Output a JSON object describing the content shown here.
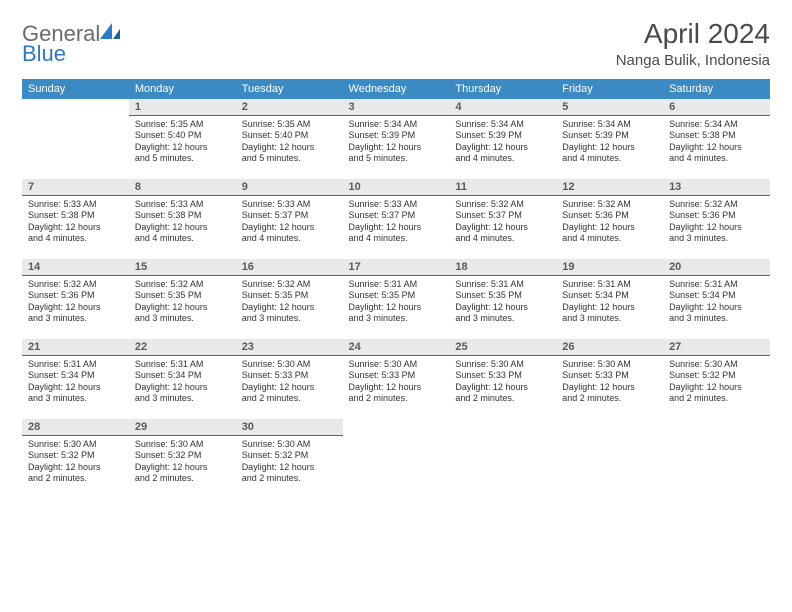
{
  "brand": {
    "name_gray": "General",
    "name_blue": "Blue"
  },
  "header": {
    "title": "April 2024",
    "location": "Nanga Bulik, Indonesia"
  },
  "colors": {
    "header_bg": "#3b8ac4",
    "header_text": "#ffffff",
    "daynum_bg": "#e7e9ea",
    "daynum_border": "#2c6aa0",
    "body_text": "#333333",
    "title_text": "#4a4a4a",
    "logo_gray": "#6b6b6b",
    "logo_blue": "#2f7ac0"
  },
  "weekdays": [
    "Sunday",
    "Monday",
    "Tuesday",
    "Wednesday",
    "Thursday",
    "Friday",
    "Saturday"
  ],
  "weeks": [
    [
      null,
      {
        "n": "1",
        "sr": "Sunrise: 5:35 AM",
        "ss": "Sunset: 5:40 PM",
        "d1": "Daylight: 12 hours",
        "d2": "and 5 minutes."
      },
      {
        "n": "2",
        "sr": "Sunrise: 5:35 AM",
        "ss": "Sunset: 5:40 PM",
        "d1": "Daylight: 12 hours",
        "d2": "and 5 minutes."
      },
      {
        "n": "3",
        "sr": "Sunrise: 5:34 AM",
        "ss": "Sunset: 5:39 PM",
        "d1": "Daylight: 12 hours",
        "d2": "and 5 minutes."
      },
      {
        "n": "4",
        "sr": "Sunrise: 5:34 AM",
        "ss": "Sunset: 5:39 PM",
        "d1": "Daylight: 12 hours",
        "d2": "and 4 minutes."
      },
      {
        "n": "5",
        "sr": "Sunrise: 5:34 AM",
        "ss": "Sunset: 5:39 PM",
        "d1": "Daylight: 12 hours",
        "d2": "and 4 minutes."
      },
      {
        "n": "6",
        "sr": "Sunrise: 5:34 AM",
        "ss": "Sunset: 5:38 PM",
        "d1": "Daylight: 12 hours",
        "d2": "and 4 minutes."
      }
    ],
    [
      {
        "n": "7",
        "sr": "Sunrise: 5:33 AM",
        "ss": "Sunset: 5:38 PM",
        "d1": "Daylight: 12 hours",
        "d2": "and 4 minutes."
      },
      {
        "n": "8",
        "sr": "Sunrise: 5:33 AM",
        "ss": "Sunset: 5:38 PM",
        "d1": "Daylight: 12 hours",
        "d2": "and 4 minutes."
      },
      {
        "n": "9",
        "sr": "Sunrise: 5:33 AM",
        "ss": "Sunset: 5:37 PM",
        "d1": "Daylight: 12 hours",
        "d2": "and 4 minutes."
      },
      {
        "n": "10",
        "sr": "Sunrise: 5:33 AM",
        "ss": "Sunset: 5:37 PM",
        "d1": "Daylight: 12 hours",
        "d2": "and 4 minutes."
      },
      {
        "n": "11",
        "sr": "Sunrise: 5:32 AM",
        "ss": "Sunset: 5:37 PM",
        "d1": "Daylight: 12 hours",
        "d2": "and 4 minutes."
      },
      {
        "n": "12",
        "sr": "Sunrise: 5:32 AM",
        "ss": "Sunset: 5:36 PM",
        "d1": "Daylight: 12 hours",
        "d2": "and 4 minutes."
      },
      {
        "n": "13",
        "sr": "Sunrise: 5:32 AM",
        "ss": "Sunset: 5:36 PM",
        "d1": "Daylight: 12 hours",
        "d2": "and 3 minutes."
      }
    ],
    [
      {
        "n": "14",
        "sr": "Sunrise: 5:32 AM",
        "ss": "Sunset: 5:36 PM",
        "d1": "Daylight: 12 hours",
        "d2": "and 3 minutes."
      },
      {
        "n": "15",
        "sr": "Sunrise: 5:32 AM",
        "ss": "Sunset: 5:35 PM",
        "d1": "Daylight: 12 hours",
        "d2": "and 3 minutes."
      },
      {
        "n": "16",
        "sr": "Sunrise: 5:32 AM",
        "ss": "Sunset: 5:35 PM",
        "d1": "Daylight: 12 hours",
        "d2": "and 3 minutes."
      },
      {
        "n": "17",
        "sr": "Sunrise: 5:31 AM",
        "ss": "Sunset: 5:35 PM",
        "d1": "Daylight: 12 hours",
        "d2": "and 3 minutes."
      },
      {
        "n": "18",
        "sr": "Sunrise: 5:31 AM",
        "ss": "Sunset: 5:35 PM",
        "d1": "Daylight: 12 hours",
        "d2": "and 3 minutes."
      },
      {
        "n": "19",
        "sr": "Sunrise: 5:31 AM",
        "ss": "Sunset: 5:34 PM",
        "d1": "Daylight: 12 hours",
        "d2": "and 3 minutes."
      },
      {
        "n": "20",
        "sr": "Sunrise: 5:31 AM",
        "ss": "Sunset: 5:34 PM",
        "d1": "Daylight: 12 hours",
        "d2": "and 3 minutes."
      }
    ],
    [
      {
        "n": "21",
        "sr": "Sunrise: 5:31 AM",
        "ss": "Sunset: 5:34 PM",
        "d1": "Daylight: 12 hours",
        "d2": "and 3 minutes."
      },
      {
        "n": "22",
        "sr": "Sunrise: 5:31 AM",
        "ss": "Sunset: 5:34 PM",
        "d1": "Daylight: 12 hours",
        "d2": "and 3 minutes."
      },
      {
        "n": "23",
        "sr": "Sunrise: 5:30 AM",
        "ss": "Sunset: 5:33 PM",
        "d1": "Daylight: 12 hours",
        "d2": "and 2 minutes."
      },
      {
        "n": "24",
        "sr": "Sunrise: 5:30 AM",
        "ss": "Sunset: 5:33 PM",
        "d1": "Daylight: 12 hours",
        "d2": "and 2 minutes."
      },
      {
        "n": "25",
        "sr": "Sunrise: 5:30 AM",
        "ss": "Sunset: 5:33 PM",
        "d1": "Daylight: 12 hours",
        "d2": "and 2 minutes."
      },
      {
        "n": "26",
        "sr": "Sunrise: 5:30 AM",
        "ss": "Sunset: 5:33 PM",
        "d1": "Daylight: 12 hours",
        "d2": "and 2 minutes."
      },
      {
        "n": "27",
        "sr": "Sunrise: 5:30 AM",
        "ss": "Sunset: 5:32 PM",
        "d1": "Daylight: 12 hours",
        "d2": "and 2 minutes."
      }
    ],
    [
      {
        "n": "28",
        "sr": "Sunrise: 5:30 AM",
        "ss": "Sunset: 5:32 PM",
        "d1": "Daylight: 12 hours",
        "d2": "and 2 minutes."
      },
      {
        "n": "29",
        "sr": "Sunrise: 5:30 AM",
        "ss": "Sunset: 5:32 PM",
        "d1": "Daylight: 12 hours",
        "d2": "and 2 minutes."
      },
      {
        "n": "30",
        "sr": "Sunrise: 5:30 AM",
        "ss": "Sunset: 5:32 PM",
        "d1": "Daylight: 12 hours",
        "d2": "and 2 minutes."
      },
      null,
      null,
      null,
      null
    ]
  ]
}
